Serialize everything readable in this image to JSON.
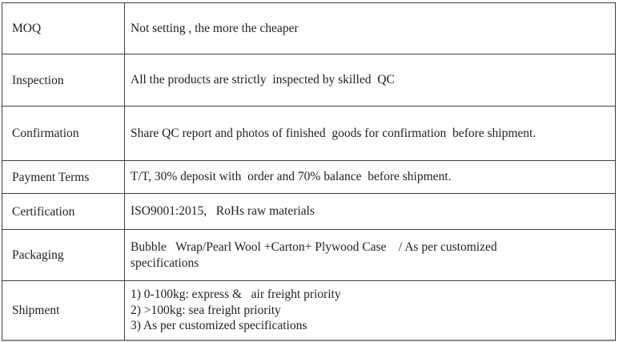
{
  "table": {
    "title": "supplier-terms-table",
    "border_color": "#3f3f3f",
    "text_color": "#1f1f1f",
    "background_color": "#ffffff",
    "rows": [
      {
        "label": "MOQ",
        "lines": [
          "Not setting , the more the cheaper"
        ]
      },
      {
        "label": "Inspection",
        "lines": [
          "All the products are strictly  inspected by skilled  QC"
        ]
      },
      {
        "label": "Confirmation",
        "lines": [
          "Share QC report and photos of finished  goods for confirmation  before shipment."
        ]
      },
      {
        "label": "Payment Terms",
        "lines": [
          "T/T, 30% deposit with  order and 70% balance  before shipment."
        ]
      },
      {
        "label": "Certification",
        "lines": [
          "ISO9001:2015,   RoHs raw materials"
        ]
      },
      {
        "label": "Packaging",
        "lines": [
          "Bubble   Wrap/Pearl Wool +Carton+ Plywood Case    / As per customized",
          "specifications"
        ]
      },
      {
        "label": "Shipment",
        "lines": [
          "1) 0-100kg: express &   air freight priority",
          "2) >100kg: sea freight priority",
          "3) As per customized specifications"
        ]
      }
    ]
  }
}
